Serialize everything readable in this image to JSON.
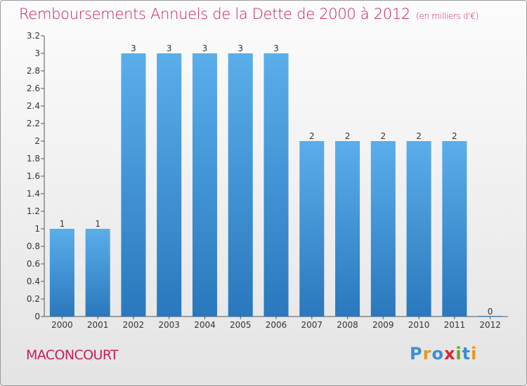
{
  "header": {
    "title": "Remboursements Annuels de la Dette de 2000 à 2012",
    "unit": "(en milliers d'€)"
  },
  "footer": {
    "commune": "MACONCOURT",
    "logo": {
      "letters": [
        "P",
        "r",
        "o",
        "x",
        "i",
        "t",
        "i"
      ],
      "colors": [
        "#3a8fd6",
        "#e8971e",
        "#3a8fd6",
        "#d6282e",
        "#6aa822",
        "#3a8fd6",
        "#e8971e"
      ]
    }
  },
  "chart_data": {
    "type": "bar",
    "title": "Remboursements Annuels de la Dette de 2000 à 2012",
    "xlabel": "",
    "ylabel": "",
    "categories": [
      "2000",
      "2001",
      "2002",
      "2003",
      "2004",
      "2005",
      "2006",
      "2007",
      "2008",
      "2009",
      "2010",
      "2011",
      "2012"
    ],
    "values": [
      1,
      1,
      3,
      3,
      3,
      3,
      3,
      2,
      2,
      2,
      2,
      2,
      0
    ],
    "data_labels": [
      "1",
      "1",
      "3",
      "3",
      "3",
      "3",
      "3",
      "2",
      "2",
      "2",
      "2",
      "2",
      "0"
    ],
    "ylim": [
      0,
      3.2
    ],
    "yticks": [
      0,
      0.2,
      0.4,
      0.6,
      0.8,
      1,
      1.2,
      1.4,
      1.6,
      1.8,
      2,
      2.2,
      2.4,
      2.6,
      2.8,
      3,
      3.2
    ],
    "ytick_labels": [
      "0",
      "0.2",
      "0.4",
      "0.6",
      "0.8",
      "1",
      "1.2",
      "1.4",
      "1.6",
      "1.8",
      "2",
      "2.2",
      "2.4",
      "2.6",
      "2.8",
      "3",
      "3.2"
    ],
    "grid": false,
    "colors": {
      "bar_top": "#5aaeea",
      "bar_bottom": "#2a78bd",
      "axis": "#555555"
    }
  }
}
